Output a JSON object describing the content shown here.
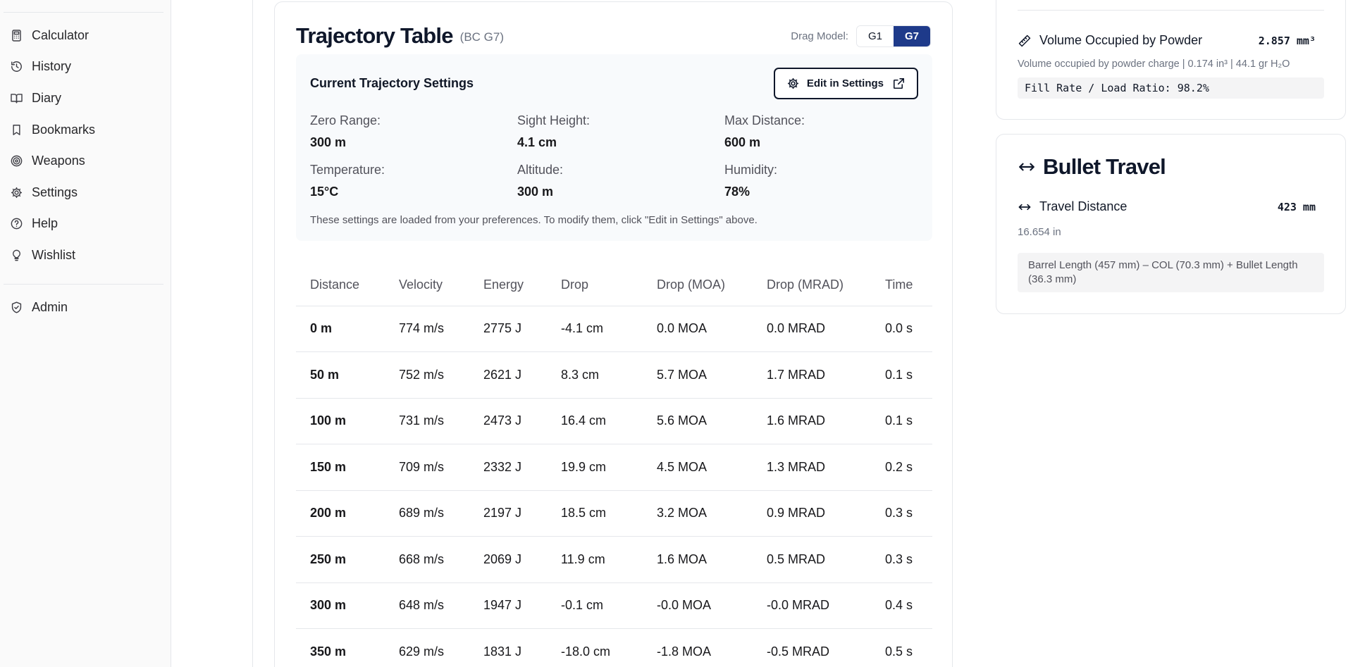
{
  "sidebar": {
    "items": [
      {
        "label": "Calculator",
        "icon": "calculator-icon"
      },
      {
        "label": "History",
        "icon": "history-icon"
      },
      {
        "label": "Diary",
        "icon": "book-icon"
      },
      {
        "label": "Bookmarks",
        "icon": "bookmark-icon"
      },
      {
        "label": "Weapons",
        "icon": "target-icon"
      },
      {
        "label": "Settings",
        "icon": "gear-icon"
      },
      {
        "label": "Help",
        "icon": "help-circle-icon"
      },
      {
        "label": "Wishlist",
        "icon": "lightbulb-icon"
      }
    ],
    "admin": {
      "label": "Admin",
      "icon": "shield-check-icon"
    }
  },
  "trajectory": {
    "title": "Trajectory Table",
    "subtitle": "(BC G7)",
    "drag_model_label": "Drag Model:",
    "drag_options": [
      "G1",
      "G7"
    ],
    "drag_selected": "G7",
    "settings": {
      "title": "Current Trajectory Settings",
      "edit_label": "Edit in Settings",
      "fields": [
        {
          "label": "Zero Range:",
          "value": "300 m"
        },
        {
          "label": "Sight Height:",
          "value": "4.1 cm"
        },
        {
          "label": "Max Distance:",
          "value": "600 m"
        },
        {
          "label": "Temperature:",
          "value": "15°C"
        },
        {
          "label": "Altitude:",
          "value": "300 m"
        },
        {
          "label": "Humidity:",
          "value": "78%"
        }
      ],
      "note": "These settings are loaded from your preferences. To modify them, click \"Edit in Settings\" above."
    },
    "columns": [
      "Distance",
      "Velocity",
      "Energy",
      "Drop",
      "Drop (MOA)",
      "Drop (MRAD)",
      "Time"
    ],
    "rows": [
      [
        "0 m",
        "774 m/s",
        "2775 J",
        "-4.1 cm",
        "0.0 MOA",
        "0.0 MRAD",
        "0.0 s"
      ],
      [
        "50 m",
        "752 m/s",
        "2621 J",
        "8.3 cm",
        "5.7 MOA",
        "1.7 MRAD",
        "0.1 s"
      ],
      [
        "100 m",
        "731 m/s",
        "2473 J",
        "16.4 cm",
        "5.6 MOA",
        "1.6 MRAD",
        "0.1 s"
      ],
      [
        "150 m",
        "709 m/s",
        "2332 J",
        "19.9 cm",
        "4.5 MOA",
        "1.3 MRAD",
        "0.2 s"
      ],
      [
        "200 m",
        "689 m/s",
        "2197 J",
        "18.5 cm",
        "3.2 MOA",
        "0.9 MRAD",
        "0.3 s"
      ],
      [
        "250 m",
        "668 m/s",
        "2069 J",
        "11.9 cm",
        "1.6 MOA",
        "0.5 MRAD",
        "0.3 s"
      ],
      [
        "300 m",
        "648 m/s",
        "1947 J",
        "-0.1 cm",
        "-0.0 MOA",
        "-0.0 MRAD",
        "0.4 s"
      ],
      [
        "350 m",
        "629 m/s",
        "1831 J",
        "-18.0 cm",
        "-1.8 MOA",
        "-0.5 MRAD",
        "0.5 s"
      ]
    ]
  },
  "volume": {
    "title": "Volume Occupied by Powder",
    "value": "2.857 mm³",
    "desc": "Volume occupied by powder charge | 0.174 in³ | 44.1 gr H₂O",
    "fill": "Fill Rate / Load Ratio: 98.2%"
  },
  "travel": {
    "title": "Bullet Travel",
    "distance_label": "Travel Distance",
    "distance_value": "423 mm",
    "distance_in": "16.654 in",
    "formula": "Barrel Length (457 mm) – COL (70.3 mm) + Bullet Length (36.3 mm)"
  },
  "colors": {
    "accent": "#1e3a8a",
    "text": "#0f172a",
    "muted": "#6b7280",
    "panel": "#f8fafc"
  }
}
